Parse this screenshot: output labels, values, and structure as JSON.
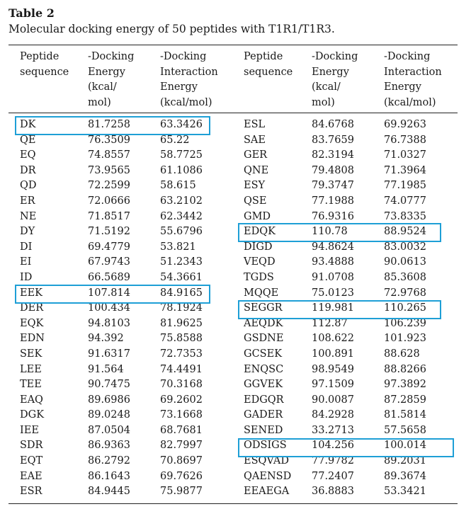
{
  "caption": {
    "label": "Table 2",
    "title": "Molecular docking energy of 50 peptides with T1R1/T1R3."
  },
  "columns": [
    "Peptide\nsequence",
    "-Docking\nEnergy\n(kcal/\nmol)",
    "-Docking\nInteraction\nEnergy\n(kcal/mol)",
    "Peptide\nsequence",
    "-Docking\nEnergy\n(kcal/\nmol)",
    "-Docking\nInteraction\nEnergy\n(kcal/mol)"
  ],
  "rows": [
    [
      "DK",
      "81.7258",
      "63.3426",
      "ESL",
      "84.6768",
      "69.9263"
    ],
    [
      "QE",
      "76.3509",
      "65.22",
      "SAE",
      "83.7659",
      "76.7388"
    ],
    [
      "EQ",
      "74.8557",
      "58.7725",
      "GER",
      "82.3194",
      "71.0327"
    ],
    [
      "DR",
      "73.9565",
      "61.1086",
      "QNE",
      "79.4808",
      "71.3964"
    ],
    [
      "QD",
      "72.2599",
      "58.615",
      "ESY",
      "79.3747",
      "77.1985"
    ],
    [
      "ER",
      "72.0666",
      "63.2102",
      "QSE",
      "77.1988",
      "74.0777"
    ],
    [
      "NE",
      "71.8517",
      "62.3442",
      "GMD",
      "76.9316",
      "73.8335"
    ],
    [
      "DY",
      "71.5192",
      "55.6796",
      "EDQK",
      "110.78",
      "88.9524"
    ],
    [
      "DI",
      "69.4779",
      "53.821",
      "DIGD",
      "94.8624",
      "83.0032"
    ],
    [
      "EI",
      "67.9743",
      "51.2343",
      "VEQD",
      "93.4888",
      "90.0613"
    ],
    [
      "ID",
      "66.5689",
      "54.3661",
      "TGDS",
      "91.0708",
      "85.3608"
    ],
    [
      "EEK",
      "107.814",
      "84.9165",
      "MQQE",
      "75.0123",
      "72.9768"
    ],
    [
      "DER",
      "100.434",
      "78.1924",
      "SEGGR",
      "119.981",
      "110.265"
    ],
    [
      "EQK",
      "94.8103",
      "81.9625",
      "AEQDK",
      "112.87",
      "106.239"
    ],
    [
      "EDN",
      "94.392",
      "75.8588",
      "GSDNE",
      "108.622",
      "101.923"
    ],
    [
      "SEK",
      "91.6317",
      "72.7353",
      "GCSEK",
      "100.891",
      "88.628"
    ],
    [
      "LEE",
      "91.564",
      "74.4491",
      "ENQSC",
      "98.9549",
      "88.8266"
    ],
    [
      "TEE",
      "90.7475",
      "70.3168",
      "GGVEK",
      "97.1509",
      "97.3892"
    ],
    [
      "EAQ",
      "89.6986",
      "69.2602",
      "EDGQR",
      "90.0087",
      "87.2859"
    ],
    [
      "DGK",
      "89.0248",
      "73.1668",
      "GADER",
      "84.2928",
      "81.5814"
    ],
    [
      "IEE",
      "87.0504",
      "68.7681",
      "SENED",
      "33.2713",
      "57.5658"
    ],
    [
      "SDR",
      "86.9363",
      "82.7997",
      "ODSIGS",
      "104.256",
      "100.014"
    ],
    [
      "EQT",
      "86.2792",
      "70.8697",
      "ESQVAD",
      "77.9782",
      "89.2031"
    ],
    [
      "EAE",
      "86.1643",
      "69.7626",
      "QAENSD",
      "77.2407",
      "89.3674"
    ],
    [
      "ESR",
      "84.9445",
      "75.9877",
      "EEAEGA",
      "36.8883",
      "53.3421"
    ]
  ],
  "highlight_color": "#1e9fd6"
}
